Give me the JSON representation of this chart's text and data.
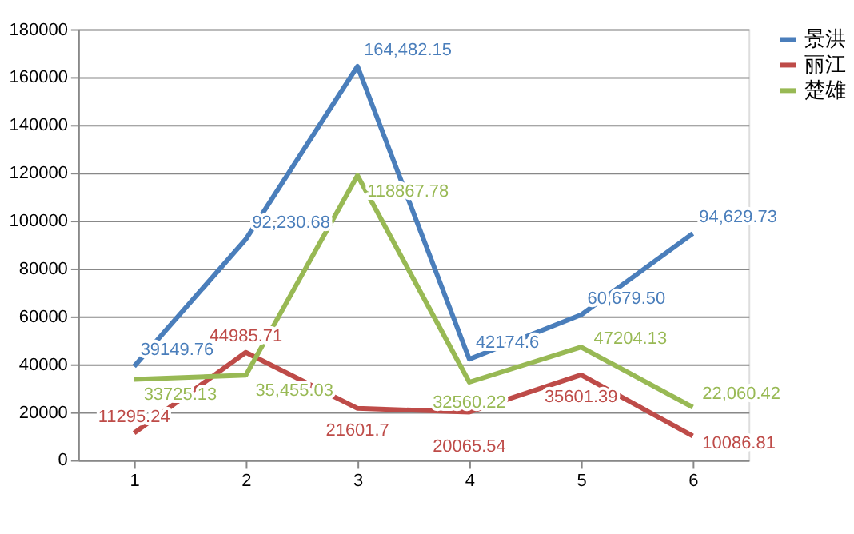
{
  "chart_data": {
    "type": "line",
    "categories": [
      "1",
      "2",
      "3",
      "4",
      "5",
      "6"
    ],
    "series": [
      {
        "name": "景洪",
        "color": "#4a7ebb",
        "values": [
          39149.76,
          92230.68,
          164482.15,
          42174.6,
          60679.5,
          94629.73
        ],
        "value_labels": [
          "39149.76",
          "92,230.68",
          "164,482.15",
          "42174.6",
          "60,679.50",
          "94,629.73"
        ]
      },
      {
        "name": "丽江",
        "color": "#be4b48",
        "values": [
          11295.24,
          44985.71,
          21601.7,
          20065.54,
          35601.39,
          10086.81
        ],
        "value_labels": [
          "11295.24",
          "44985.71",
          "21601.7",
          "20065.54",
          "35601.39",
          "10086.81"
        ]
      },
      {
        "name": "楚雄",
        "color": "#98b954",
        "values": [
          33725.13,
          35455.03,
          118867.78,
          32560.22,
          47204.13,
          22060.42
        ],
        "value_labels": [
          "33725.13",
          "35,455.03",
          "118867.78",
          "32560.22",
          "47204.13",
          "22,060.42"
        ]
      }
    ],
    "ylim": [
      0,
      180000
    ],
    "yticks": [
      0,
      20000,
      40000,
      60000,
      80000,
      100000,
      120000,
      140000,
      160000,
      180000
    ],
    "grid": "y",
    "legend": "right",
    "marker": "none",
    "line_style": "solid"
  }
}
